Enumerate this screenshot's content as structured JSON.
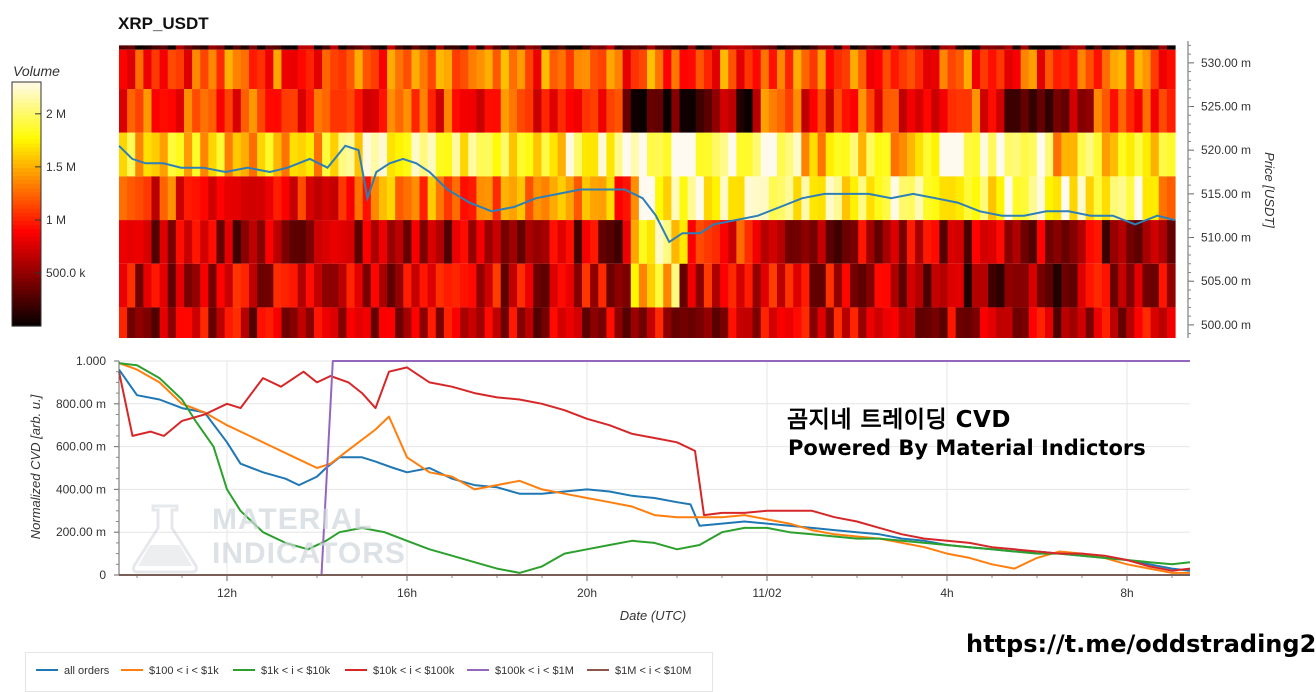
{
  "title": "XRP_USDT",
  "watermark": {
    "line1": "곰지네 트레이딩 CVD",
    "line2": "Powered By Material Indictors",
    "logo_line1": "MATERIAL",
    "logo_line2": "INDICATORS",
    "logo_icon": "flask-icon"
  },
  "link": "https://t.me/oddstrading2",
  "colors": {
    "all_orders": "#1f77b4",
    "orange": "#ff7f0e",
    "green": "#2ca02c",
    "red": "#d62728",
    "purple": "#9467bd",
    "brown": "#8c564b",
    "price_line": "#2c7fb8"
  },
  "chart_data": [
    {
      "type": "heatmap",
      "title": "XRP_USDT",
      "ylabel": "Price [USDT]",
      "colorbar_label": "Volume",
      "colorbar_ticks": [
        "2 M",
        "1.5 M",
        "1 M",
        "500.0 k"
      ],
      "colorbar_values": [
        2000000,
        1500000,
        1000000,
        500000
      ],
      "colorbar_range": [
        0,
        2300000
      ],
      "y_ticks": [
        "530.00 m",
        "525.00 m",
        "520.00 m",
        "515.00 m",
        "510.00 m",
        "505.00 m",
        "500.00 m"
      ],
      "y_tick_values": [
        0.53,
        0.525,
        0.52,
        0.515,
        0.51,
        0.505,
        0.5
      ],
      "ylim": [
        0.4985,
        0.5325
      ],
      "x_range_hours": [
        9.6,
        33.4
      ],
      "price_bands": [
        {
          "low": 0.5315,
          "high": 0.532,
          "avg": 0.12
        },
        {
          "low": 0.527,
          "high": 0.5315,
          "avg": 0.5
        },
        {
          "low": 0.522,
          "high": 0.527,
          "avg": 0.45
        },
        {
          "low": 0.517,
          "high": 0.522,
          "avg": 0.72
        },
        {
          "low": 0.512,
          "high": 0.517,
          "avg": 0.55
        },
        {
          "low": 0.507,
          "high": 0.512,
          "avg": 0.25
        },
        {
          "low": 0.502,
          "high": 0.507,
          "avg": 0.3
        },
        {
          "low": 0.4985,
          "high": 0.502,
          "avg": 0.28
        }
      ],
      "price_series": {
        "name": "price",
        "x": [
          9.6,
          9.9,
          10.2,
          10.6,
          11,
          11.5,
          12,
          12.5,
          13,
          13.4,
          13.9,
          14.3,
          14.7,
          15,
          15.2,
          15.4,
          15.7,
          16,
          16.3,
          16.6,
          17,
          17.5,
          18,
          18.5,
          19,
          19.5,
          20,
          20.5,
          21,
          21.4,
          21.7,
          22,
          22.3,
          22.7,
          23,
          23.5,
          24,
          24.5,
          25,
          25.5,
          26,
          26.5,
          27,
          27.5,
          28,
          28.5,
          29,
          29.5,
          30,
          30.5,
          31,
          31.5,
          32,
          32.5,
          33,
          33.4
        ],
        "y": [
          0.5205,
          0.519,
          0.5185,
          0.5185,
          0.518,
          0.518,
          0.5175,
          0.518,
          0.5175,
          0.518,
          0.519,
          0.518,
          0.5205,
          0.52,
          0.5145,
          0.5175,
          0.5185,
          0.519,
          0.5185,
          0.5175,
          0.5155,
          0.514,
          0.513,
          0.5135,
          0.5145,
          0.515,
          0.5155,
          0.5155,
          0.5155,
          0.5145,
          0.5125,
          0.5095,
          0.5105,
          0.5105,
          0.5115,
          0.512,
          0.5125,
          0.5135,
          0.5145,
          0.515,
          0.515,
          0.515,
          0.5145,
          0.515,
          0.5145,
          0.514,
          0.513,
          0.5125,
          0.5125,
          0.513,
          0.513,
          0.5125,
          0.5125,
          0.5115,
          0.5125,
          0.512
        ]
      }
    },
    {
      "type": "line",
      "xlabel": "Date (UTC)",
      "ylabel": "Normalized CVD [arb. u.]",
      "ylim": [
        0,
        1
      ],
      "x_range_hours": [
        9.6,
        33.4
      ],
      "x_ticks": [
        "12h",
        "16h",
        "20h",
        "11/02",
        "4h",
        "8h"
      ],
      "x_tick_hours": [
        12,
        16,
        20,
        24,
        28,
        32
      ],
      "y_ticks": [
        "1.000",
        "800.00 m",
        "600.00 m",
        "400.00 m",
        "200.00 m",
        "0"
      ],
      "y_tick_values": [
        1.0,
        0.8,
        0.6,
        0.4,
        0.2,
        0
      ],
      "grid": true,
      "legend_position": "bottom",
      "series": [
        {
          "name": "all orders",
          "color": "#1f77b4",
          "x": [
            9.6,
            10,
            10.5,
            11,
            11.5,
            12,
            12.3,
            12.8,
            13.3,
            13.6,
            14,
            14.2,
            14.5,
            15,
            15.3,
            15.7,
            16,
            16.5,
            17,
            17.5,
            18,
            18.5,
            19,
            19.5,
            20,
            20.5,
            21,
            21.5,
            22,
            22.3,
            22.5,
            23,
            23.5,
            24,
            24.5,
            25,
            25.5,
            26,
            26.5,
            27,
            27.5,
            28,
            28.5,
            29,
            29.5,
            30,
            30.5,
            31,
            31.5,
            32,
            32.5,
            33,
            33.4
          ],
          "y": [
            0.96,
            0.84,
            0.82,
            0.78,
            0.76,
            0.62,
            0.52,
            0.48,
            0.45,
            0.42,
            0.46,
            0.5,
            0.55,
            0.55,
            0.53,
            0.5,
            0.48,
            0.5,
            0.45,
            0.42,
            0.41,
            0.38,
            0.38,
            0.39,
            0.4,
            0.39,
            0.37,
            0.36,
            0.34,
            0.33,
            0.23,
            0.24,
            0.25,
            0.24,
            0.23,
            0.22,
            0.21,
            0.2,
            0.19,
            0.17,
            0.16,
            0.14,
            0.13,
            0.12,
            0.11,
            0.11,
            0.1,
            0.09,
            0.08,
            0.07,
            0.05,
            0.03,
            0.02
          ]
        },
        {
          "name": "$100 < i < $1k",
          "color": "#ff7f0e",
          "x": [
            9.6,
            10,
            10.5,
            11,
            11.5,
            12,
            12.5,
            13,
            13.5,
            14,
            14.3,
            14.8,
            15.3,
            15.6,
            16,
            16.5,
            17,
            17.5,
            18,
            18.5,
            19,
            19.5,
            20,
            20.5,
            21,
            21.5,
            22,
            22.5,
            23,
            23.5,
            24,
            24.5,
            25,
            25.5,
            26,
            26.5,
            27,
            27.5,
            28,
            28.5,
            29,
            29.5,
            30,
            30.5,
            31,
            31.5,
            32,
            32.5,
            33,
            33.4
          ],
          "y": [
            0.99,
            0.96,
            0.9,
            0.8,
            0.76,
            0.7,
            0.65,
            0.6,
            0.55,
            0.5,
            0.52,
            0.6,
            0.68,
            0.74,
            0.55,
            0.48,
            0.46,
            0.4,
            0.42,
            0.44,
            0.4,
            0.38,
            0.36,
            0.34,
            0.32,
            0.28,
            0.27,
            0.27,
            0.27,
            0.28,
            0.26,
            0.24,
            0.21,
            0.19,
            0.18,
            0.17,
            0.15,
            0.13,
            0.1,
            0.08,
            0.05,
            0.03,
            0.08,
            0.11,
            0.1,
            0.08,
            0.05,
            0.03,
            0.01,
            0.01
          ]
        },
        {
          "name": "$1k < i < $10k",
          "color": "#2ca02c",
          "x": [
            9.6,
            10,
            10.5,
            11,
            11.3,
            11.7,
            12,
            12.3,
            12.8,
            13.3,
            13.8,
            14.2,
            14.5,
            15,
            15.5,
            16,
            16.5,
            17,
            17.5,
            18,
            18.5,
            19,
            19.5,
            20,
            20.5,
            21,
            21.5,
            22,
            22.5,
            23,
            23.5,
            24,
            24.5,
            25,
            25.5,
            26,
            26.5,
            27,
            27.5,
            28,
            28.5,
            29,
            29.5,
            30,
            30.5,
            31,
            31.5,
            32,
            32.5,
            33,
            33.4
          ],
          "y": [
            0.99,
            0.98,
            0.92,
            0.82,
            0.72,
            0.6,
            0.4,
            0.3,
            0.2,
            0.15,
            0.12,
            0.16,
            0.2,
            0.22,
            0.2,
            0.16,
            0.12,
            0.09,
            0.06,
            0.03,
            0.01,
            0.04,
            0.1,
            0.12,
            0.14,
            0.16,
            0.15,
            0.12,
            0.14,
            0.2,
            0.22,
            0.22,
            0.2,
            0.19,
            0.18,
            0.17,
            0.17,
            0.16,
            0.15,
            0.14,
            0.13,
            0.12,
            0.11,
            0.1,
            0.1,
            0.09,
            0.08,
            0.07,
            0.06,
            0.05,
            0.06
          ]
        },
        {
          "name": "$10k < i < $100k",
          "color": "#d62728",
          "x": [
            9.6,
            9.9,
            10.3,
            10.6,
            11,
            11.5,
            12,
            12.3,
            12.8,
            13.2,
            13.7,
            14,
            14.3,
            14.7,
            15,
            15.3,
            15.6,
            16,
            16.5,
            17,
            17.5,
            18,
            18.5,
            19,
            19.5,
            20,
            20.5,
            21,
            21.5,
            22,
            22.4,
            22.6,
            23,
            23.5,
            24,
            24.5,
            25,
            25.5,
            26,
            26.5,
            27,
            27.5,
            28,
            28.5,
            29,
            29.5,
            30,
            30.5,
            31,
            31.5,
            32,
            32.5,
            33,
            33.4
          ],
          "y": [
            0.95,
            0.65,
            0.67,
            0.65,
            0.72,
            0.75,
            0.8,
            0.78,
            0.92,
            0.88,
            0.95,
            0.9,
            0.93,
            0.9,
            0.85,
            0.78,
            0.95,
            0.97,
            0.9,
            0.88,
            0.85,
            0.83,
            0.82,
            0.8,
            0.77,
            0.73,
            0.7,
            0.66,
            0.64,
            0.62,
            0.58,
            0.28,
            0.29,
            0.29,
            0.3,
            0.3,
            0.3,
            0.27,
            0.25,
            0.22,
            0.19,
            0.17,
            0.16,
            0.15,
            0.13,
            0.12,
            0.11,
            0.1,
            0.1,
            0.09,
            0.07,
            0.04,
            0.02,
            0.03
          ]
        },
        {
          "name": "$100k < i < $1M",
          "color": "#9467bd",
          "x": [
            9.6,
            14.1,
            14.35,
            33.4
          ],
          "y": [
            0,
            0,
            1,
            1
          ]
        },
        {
          "name": "$1M < i < $10M",
          "color": "#8c564b",
          "x": [
            9.6,
            33.4
          ],
          "y": [
            0,
            0
          ]
        }
      ]
    }
  ]
}
